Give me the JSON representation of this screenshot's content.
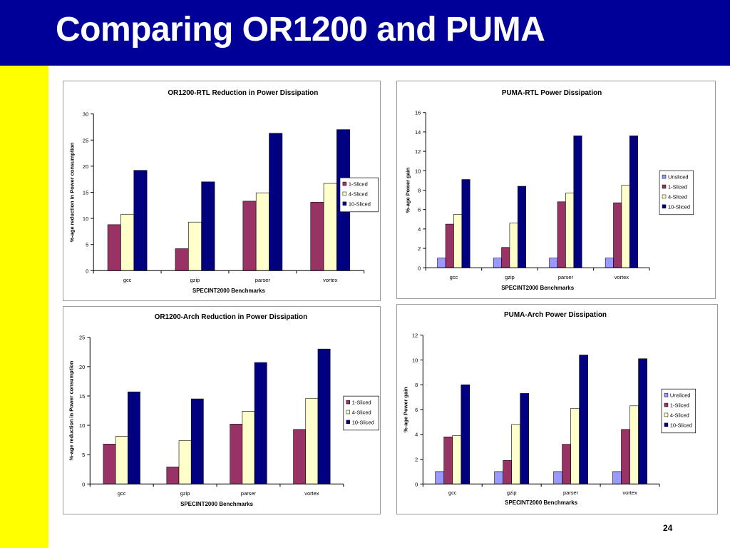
{
  "slide": {
    "title": "Comparing OR1200 and PUMA",
    "page_number": "24"
  },
  "colors": {
    "header_bg": "#000099",
    "sidebar_bg": "#ffff00",
    "unsliced": "#9999ff",
    "sliced_1": "#993366",
    "sliced_4": "#ffffcc",
    "sliced_10": "#000080"
  },
  "chart_data": [
    {
      "id": "or1200-rtl",
      "type": "bar",
      "title": "OR1200-RTL Reduction in Power Dissipation",
      "xlabel": "SPECINT2000 Benchmarks",
      "ylabel": "%-age reduction in Power consumption",
      "categories": [
        "gcc",
        "gzip",
        "parser",
        "vortex"
      ],
      "ylim": [
        0,
        30
      ],
      "yticks": [
        0,
        5,
        10,
        15,
        20,
        25,
        30
      ],
      "legend_position": "right",
      "grid": false,
      "series": [
        {
          "name": "1-Sliced",
          "color": "#993366",
          "values": [
            8.8,
            4.2,
            13.3,
            13.1
          ]
        },
        {
          "name": "4-Sliced",
          "color": "#ffffcc",
          "values": [
            10.8,
            9.3,
            14.9,
            16.7
          ]
        },
        {
          "name": "10-Sliced",
          "color": "#000080",
          "values": [
            19.2,
            17.0,
            26.3,
            27.0
          ]
        }
      ]
    },
    {
      "id": "puma-rtl",
      "type": "bar",
      "title": "PUMA-RTL Power Dissipation",
      "xlabel": "SPECINT2000 Benchmarks",
      "ylabel": "%-age Power gain",
      "categories": [
        "gcc",
        "gzip",
        "parser",
        "vortex"
      ],
      "ylim": [
        0,
        16
      ],
      "yticks": [
        0,
        2,
        4,
        6,
        8,
        10,
        12,
        14,
        16
      ],
      "legend_position": "right",
      "grid": false,
      "series": [
        {
          "name": "Unsliced",
          "color": "#9999ff",
          "values": [
            1.0,
            1.0,
            1.0,
            1.0
          ]
        },
        {
          "name": "1-Sliced",
          "color": "#993366",
          "values": [
            4.5,
            2.1,
            6.8,
            6.7
          ]
        },
        {
          "name": "4-Sliced",
          "color": "#ffffcc",
          "values": [
            5.5,
            4.6,
            7.7,
            8.5
          ]
        },
        {
          "name": "10-Sliced",
          "color": "#000080",
          "values": [
            9.1,
            8.4,
            13.6,
            13.6
          ]
        }
      ]
    },
    {
      "id": "or1200-arch",
      "type": "bar",
      "title": "OR1200-Arch Reduction in Power Dissipation",
      "xlabel": "SPECINT2000 Benchmarks",
      "ylabel": "%-age reduction in Power consumption",
      "categories": [
        "gcc",
        "gzip",
        "parser",
        "vortex"
      ],
      "ylim": [
        0,
        25
      ],
      "yticks": [
        0,
        5,
        10,
        15,
        20,
        25
      ],
      "legend_position": "right",
      "grid": false,
      "series": [
        {
          "name": "1-Sliced",
          "color": "#993366",
          "values": [
            6.8,
            2.9,
            10.2,
            9.3
          ]
        },
        {
          "name": "4-Sliced",
          "color": "#ffffcc",
          "values": [
            8.1,
            7.4,
            12.4,
            14.6
          ]
        },
        {
          "name": "10-Sliced",
          "color": "#000080",
          "values": [
            15.7,
            14.5,
            20.7,
            23.0
          ]
        }
      ]
    },
    {
      "id": "puma-arch",
      "type": "bar",
      "title": "PUMA-Arch Power Dissipation",
      "xlabel": "SPECINT2000 Benchmarks",
      "ylabel": "%-age Power gain",
      "categories": [
        "gcc",
        "gzip",
        "parser",
        "vortex"
      ],
      "ylim": [
        0,
        12
      ],
      "yticks": [
        0,
        2,
        4,
        6,
        8,
        10,
        12
      ],
      "legend_position": "right",
      "grid": false,
      "series": [
        {
          "name": "Unsliced",
          "color": "#9999ff",
          "values": [
            1.0,
            1.0,
            1.0,
            1.0
          ]
        },
        {
          "name": "1-Sliced",
          "color": "#993366",
          "values": [
            3.8,
            1.9,
            3.2,
            4.4
          ]
        },
        {
          "name": "4-Sliced",
          "color": "#ffffcc",
          "values": [
            3.9,
            4.8,
            6.1,
            6.3
          ]
        },
        {
          "name": "10-Sliced",
          "color": "#000080",
          "values": [
            8.0,
            7.3,
            10.4,
            10.1
          ]
        }
      ]
    }
  ]
}
